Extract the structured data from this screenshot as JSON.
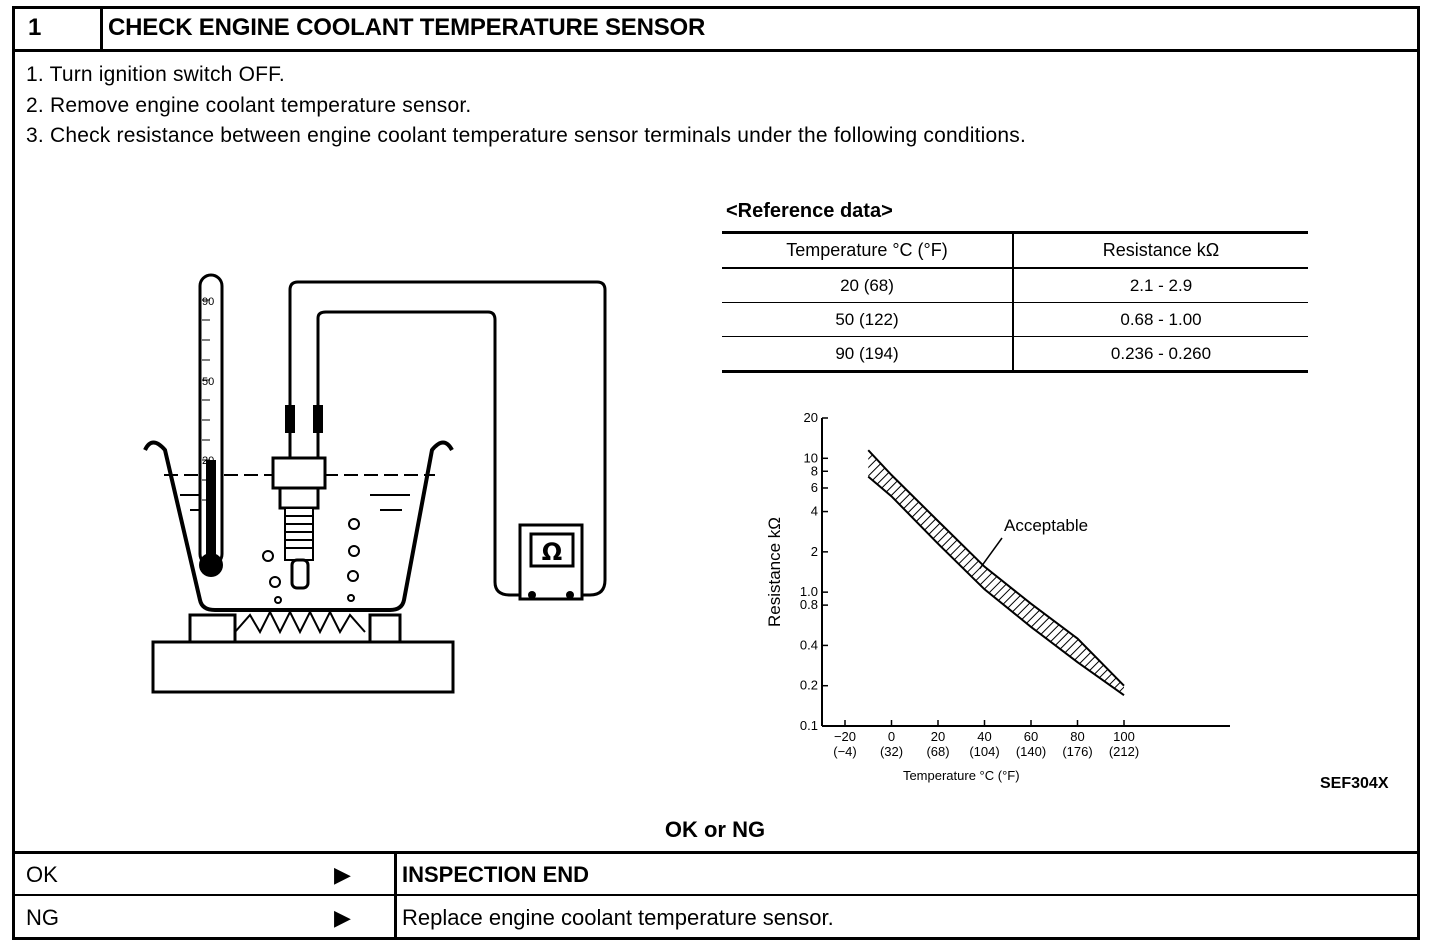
{
  "header": {
    "step_number": "1",
    "title": "CHECK ENGINE COOLANT TEMPERATURE SENSOR"
  },
  "steps": [
    "1.  Turn ignition switch OFF.",
    "2.  Remove engine coolant temperature sensor.",
    "3.  Check resistance between engine coolant temperature sensor terminals under the following conditions."
  ],
  "illustration": {
    "thermometer_marks": [
      "90",
      "50",
      "20"
    ],
    "meter_symbol": "Ω"
  },
  "reference": {
    "title": "<Reference data>",
    "columns": [
      "Temperature °C (°F)",
      "Resistance kΩ"
    ],
    "rows": [
      [
        "20 (68)",
        "2.1 - 2.9"
      ],
      [
        "50 (122)",
        "0.68 - 1.00"
      ],
      [
        "90 (194)",
        "0.236 - 0.260"
      ]
    ]
  },
  "chart_data": {
    "type": "area",
    "title": "",
    "xlabel": "Temperature °C (°F)",
    "ylabel": "Resistance kΩ",
    "y_scale": "log",
    "ylim": [
      0.1,
      20
    ],
    "xlim": [
      -20,
      100
    ],
    "x_ticks": [
      -20,
      0,
      20,
      40,
      60,
      80,
      100
    ],
    "x_tick_labels": [
      "−20",
      "0",
      "20",
      "40",
      "60",
      "80",
      "100"
    ],
    "x_tick_sublabels": [
      "(−4)",
      "(32)",
      "(68)",
      "(104)",
      "(140)",
      "(176)",
      "(212)"
    ],
    "y_ticks": [
      20,
      10,
      8,
      6,
      4,
      2,
      1.0,
      0.8,
      0.4,
      0.2,
      0.1
    ],
    "y_tick_labels": [
      "20",
      "10",
      "8",
      "6",
      "4",
      "2",
      "1.0",
      "0.8",
      "0.4",
      "0.2",
      "0.1"
    ],
    "annotation": "Acceptable",
    "series": [
      {
        "name": "Acceptable",
        "x": [
          -10,
          0,
          20,
          40,
          60,
          80,
          100
        ],
        "upper": [
          11.5,
          7.5,
          3.4,
          1.55,
          0.82,
          0.45,
          0.2
        ],
        "lower": [
          7.3,
          5.2,
          2.3,
          1.05,
          0.55,
          0.3,
          0.17
        ]
      }
    ],
    "grid": false
  },
  "figure_code": "SEF304X",
  "decision": {
    "label": "OK or NG",
    "results": [
      {
        "label": "OK",
        "arrow": "▶",
        "action": "INSPECTION END",
        "bold": true
      },
      {
        "label": "NG",
        "arrow": "▶",
        "action": "Replace engine coolant temperature sensor.",
        "bold": false
      }
    ]
  }
}
